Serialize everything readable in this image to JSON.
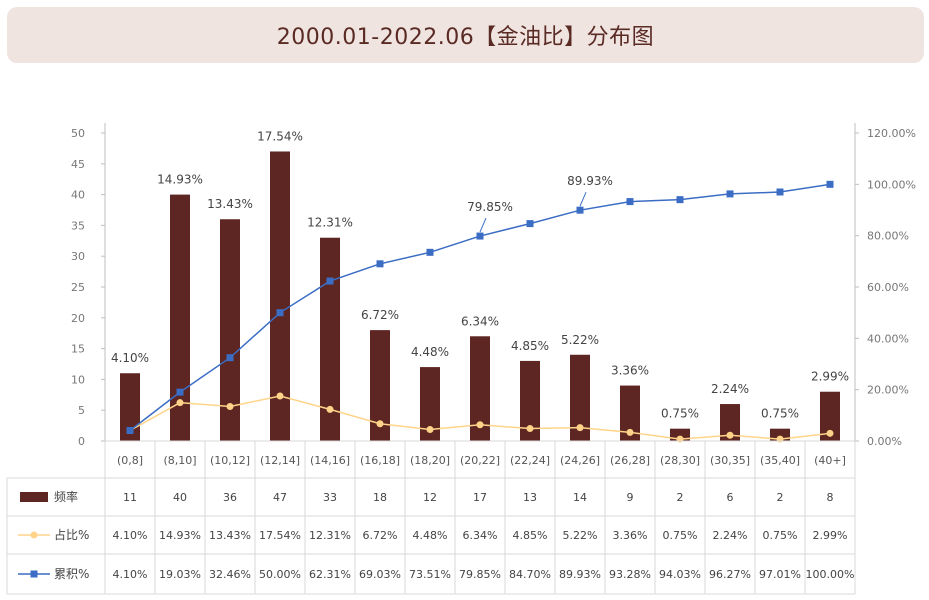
{
  "title": "2000.01-2022.06【金油比】分布图",
  "colors": {
    "bar": "#5e2622",
    "pct_line": "#ffd48a",
    "cum_line": "#3b6dc4",
    "grid": "#d9d9d9",
    "banner": "#f0e4e0"
  },
  "chart_data": {
    "type": "bar",
    "categories": [
      "(0,8]",
      "(8,10]",
      "(10,12]",
      "(12,14]",
      "(14,16]",
      "(16,18]",
      "(18,20]",
      "(20,22]",
      "(22,24]",
      "(24,26]",
      "(26,28]",
      "(28,30]",
      "(30,35]",
      "(35,40]",
      "(40+]"
    ],
    "series": [
      {
        "name": "频率",
        "type": "bar",
        "axis": "left",
        "values": [
          11,
          40,
          36,
          47,
          33,
          18,
          12,
          17,
          13,
          14,
          9,
          2,
          6,
          2,
          8
        ],
        "display": [
          "11",
          "40",
          "36",
          "47",
          "33",
          "18",
          "12",
          "17",
          "13",
          "14",
          "9",
          "2",
          "6",
          "2",
          "8"
        ]
      },
      {
        "name": "占比%",
        "type": "line",
        "axis": "right",
        "values": [
          4.1,
          14.93,
          13.43,
          17.54,
          12.31,
          6.72,
          4.48,
          6.34,
          4.85,
          5.22,
          3.36,
          0.75,
          2.24,
          0.75,
          2.99
        ],
        "display": [
          "4.10%",
          "14.93%",
          "13.43%",
          "17.54%",
          "12.31%",
          "6.72%",
          "4.48%",
          "6.34%",
          "4.85%",
          "5.22%",
          "3.36%",
          "0.75%",
          "2.24%",
          "0.75%",
          "2.99%"
        ]
      },
      {
        "name": "累积%",
        "type": "line",
        "axis": "right",
        "values": [
          4.1,
          19.03,
          32.46,
          50.0,
          62.31,
          69.03,
          73.51,
          79.85,
          84.7,
          89.93,
          93.28,
          94.03,
          96.27,
          97.01,
          100.0
        ],
        "display": [
          "4.10%",
          "19.03%",
          "32.46%",
          "50.00%",
          "62.31%",
          "69.03%",
          "73.51%",
          "79.85%",
          "84.70%",
          "89.93%",
          "93.28%",
          "94.03%",
          "96.27%",
          "97.01%",
          "100.00%"
        ]
      }
    ],
    "bar_labels": [
      "4.10%",
      "14.93%",
      "13.43%",
      "17.54%",
      "12.31%",
      "6.72%",
      "4.48%",
      "6.34%",
      "4.85%",
      "5.22%",
      "3.36%",
      "0.75%",
      "2.24%",
      "0.75%",
      "2.99%"
    ],
    "cum_annotations": [
      {
        "index": 7,
        "text": "79.85%"
      },
      {
        "index": 9,
        "text": "89.93%"
      }
    ],
    "y_left": {
      "min": 0,
      "max": 50,
      "ticks": [
        "0",
        "5",
        "10",
        "15",
        "20",
        "25",
        "30",
        "35",
        "40",
        "45",
        "50"
      ]
    },
    "y_right": {
      "min": 0,
      "max": 120,
      "ticks": [
        "0.00%",
        "20.00%",
        "40.00%",
        "60.00%",
        "80.00%",
        "100.00%",
        "120.00%"
      ]
    },
    "grid": false,
    "legend": "data-table"
  }
}
